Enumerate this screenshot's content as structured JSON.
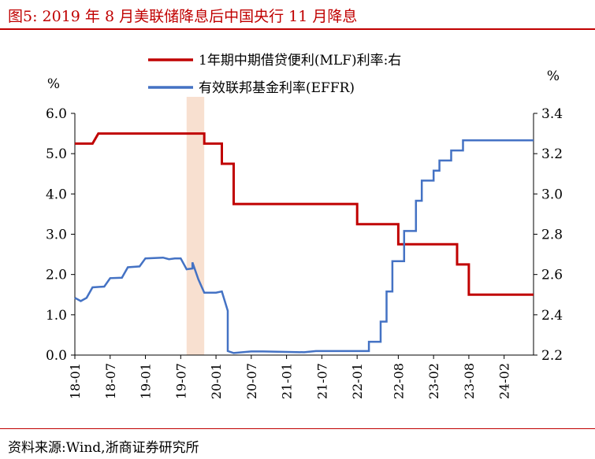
{
  "figure": {
    "title": "图5:   2019 年 8 月美联储降息后中国央行 11 月降息",
    "source": "资料来源:Wind,浙商证券研究所"
  },
  "chart_data": {
    "type": "line",
    "x_ticks": [
      "18-01",
      "18-07",
      "19-01",
      "19-07",
      "20-01",
      "20-07",
      "21-01",
      "21-07",
      "22-01",
      "22-08",
      "23-02",
      "23-08",
      "24-02"
    ],
    "y_left": {
      "unit": "%",
      "ticks": [
        "6.0",
        "5.0",
        "4.0",
        "3.0",
        "2.0",
        "1.0",
        "0.0"
      ],
      "range": [
        0,
        6
      ]
    },
    "y_right": {
      "unit": "%",
      "ticks": [
        "3.4",
        "3.2",
        "3.0",
        "2.8",
        "2.6",
        "2.4",
        "2.2"
      ],
      "range": [
        2.2,
        3.4
      ]
    },
    "highlight": {
      "from": "2019-08",
      "to": "2019-11",
      "color": "#f8e0d0"
    },
    "series": [
      {
        "name": "1年期中期借贷便利(MLF)利率:右",
        "axis": "right",
        "color": "#c00000",
        "points": [
          [
            "2018-01",
            3.25
          ],
          [
            "2018-04",
            3.25
          ],
          [
            "2018-05",
            3.3
          ],
          [
            "2019-11",
            3.3
          ],
          [
            "2019-11",
            3.25
          ],
          [
            "2020-02",
            3.25
          ],
          [
            "2020-02",
            3.15
          ],
          [
            "2020-04",
            3.15
          ],
          [
            "2020-04",
            2.95
          ],
          [
            "2022-01",
            2.95
          ],
          [
            "2022-01",
            2.85
          ],
          [
            "2022-08",
            2.85
          ],
          [
            "2022-08",
            2.75
          ],
          [
            "2023-06",
            2.75
          ],
          [
            "2023-06",
            2.65
          ],
          [
            "2023-08",
            2.65
          ],
          [
            "2023-08",
            2.5
          ],
          [
            "2024-07",
            2.5
          ]
        ]
      },
      {
        "name": "有效联邦基金利率(EFFR)",
        "axis": "left",
        "color": "#4472c4",
        "points": [
          [
            "2018-01",
            1.42
          ],
          [
            "2018-02",
            1.34
          ],
          [
            "2018-03",
            1.42
          ],
          [
            "2018-04",
            1.68
          ],
          [
            "2018-06",
            1.7
          ],
          [
            "2018-07",
            1.91
          ],
          [
            "2018-09",
            1.92
          ],
          [
            "2018-10",
            2.18
          ],
          [
            "2018-12",
            2.2
          ],
          [
            "2019-01",
            2.4
          ],
          [
            "2019-04",
            2.42
          ],
          [
            "2019-05",
            2.38
          ],
          [
            "2019-06",
            2.4
          ],
          [
            "2019-07",
            2.4
          ],
          [
            "2019-08",
            2.13
          ],
          [
            "2019-09",
            2.15
          ],
          [
            "2019-09",
            2.3
          ],
          [
            "2019-10",
            1.88
          ],
          [
            "2019-11",
            1.55
          ],
          [
            "2020-01",
            1.55
          ],
          [
            "2020-02",
            1.58
          ],
          [
            "2020-03",
            1.1
          ],
          [
            "2020-03",
            0.1
          ],
          [
            "2020-04",
            0.05
          ],
          [
            "2020-07",
            0.09
          ],
          [
            "2020-09",
            0.09
          ],
          [
            "2021-04",
            0.07
          ],
          [
            "2021-06",
            0.1
          ],
          [
            "2022-03",
            0.1
          ],
          [
            "2022-03",
            0.33
          ],
          [
            "2022-05",
            0.33
          ],
          [
            "2022-05",
            0.83
          ],
          [
            "2022-06",
            0.83
          ],
          [
            "2022-06",
            1.58
          ],
          [
            "2022-07",
            1.58
          ],
          [
            "2022-07",
            2.33
          ],
          [
            "2022-09",
            2.33
          ],
          [
            "2022-09",
            3.08
          ],
          [
            "2022-11",
            3.08
          ],
          [
            "2022-11",
            3.83
          ],
          [
            "2022-12",
            3.83
          ],
          [
            "2022-12",
            4.33
          ],
          [
            "2023-02",
            4.33
          ],
          [
            "2023-02",
            4.58
          ],
          [
            "2023-03",
            4.58
          ],
          [
            "2023-03",
            4.83
          ],
          [
            "2023-05",
            4.83
          ],
          [
            "2023-05",
            5.08
          ],
          [
            "2023-07",
            5.08
          ],
          [
            "2023-07",
            5.33
          ],
          [
            "2024-07",
            5.33
          ]
        ]
      }
    ]
  }
}
